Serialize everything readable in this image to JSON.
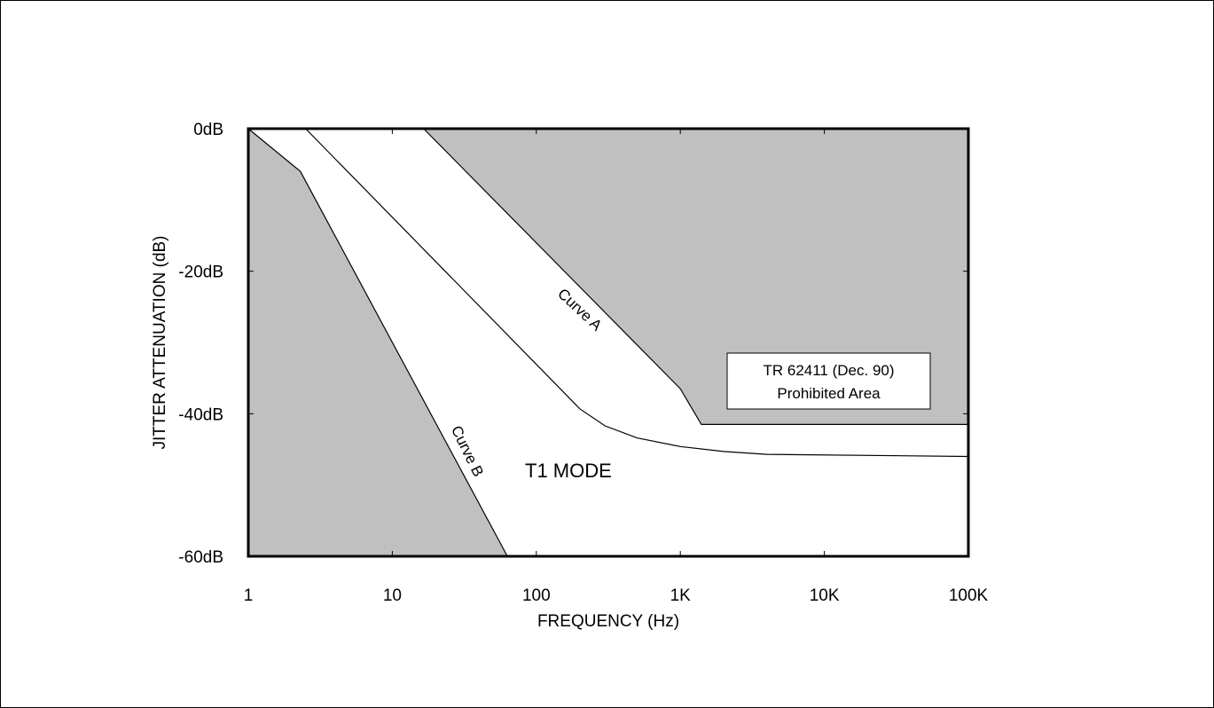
{
  "colors": {
    "prohibited_fill": "#c0c0c0",
    "line": "#000000",
    "background": "#ffffff"
  },
  "chart_data": {
    "type": "line",
    "xscale": "log",
    "xlim": [
      1,
      100000
    ],
    "ylim": [
      -60,
      0
    ],
    "xlabel": "FREQUENCY (Hz)",
    "ylabel": "JITTER ATTENUATION (dB)",
    "x_tick_labels": [
      "1",
      "10",
      "100",
      "1K",
      "10K",
      "100K"
    ],
    "y_tick_labels": [
      "0dB",
      "-20dB",
      "-40dB",
      "-60dB"
    ],
    "annotations": {
      "mode": "T1 MODE",
      "prohibited_box": [
        "TR 62411 (Dec. 90)",
        "Prohibited Area"
      ]
    },
    "series": [
      {
        "name": "Curve A",
        "x": [
          16.5,
          1000,
          1400,
          100000
        ],
        "y": [
          0,
          -36.5,
          -41.5,
          -41.5
        ]
      },
      {
        "name": "Curve B",
        "x": [
          1,
          2.3,
          63
        ],
        "y": [
          0,
          -6,
          -60
        ]
      },
      {
        "name": "",
        "x": [
          2.5,
          155,
          200,
          300,
          500,
          1000,
          2000,
          4000,
          100000
        ],
        "y": [
          0,
          -37,
          -39.3,
          -41.7,
          -43.4,
          -44.6,
          -45.3,
          -45.7,
          -46
        ]
      }
    ],
    "shaded_regions": [
      {
        "label": "Prohibited Area (upper)",
        "bounded_by": "Curve A"
      },
      {
        "label": "Prohibited Area (lower)",
        "bounded_by": "Curve B"
      }
    ]
  }
}
